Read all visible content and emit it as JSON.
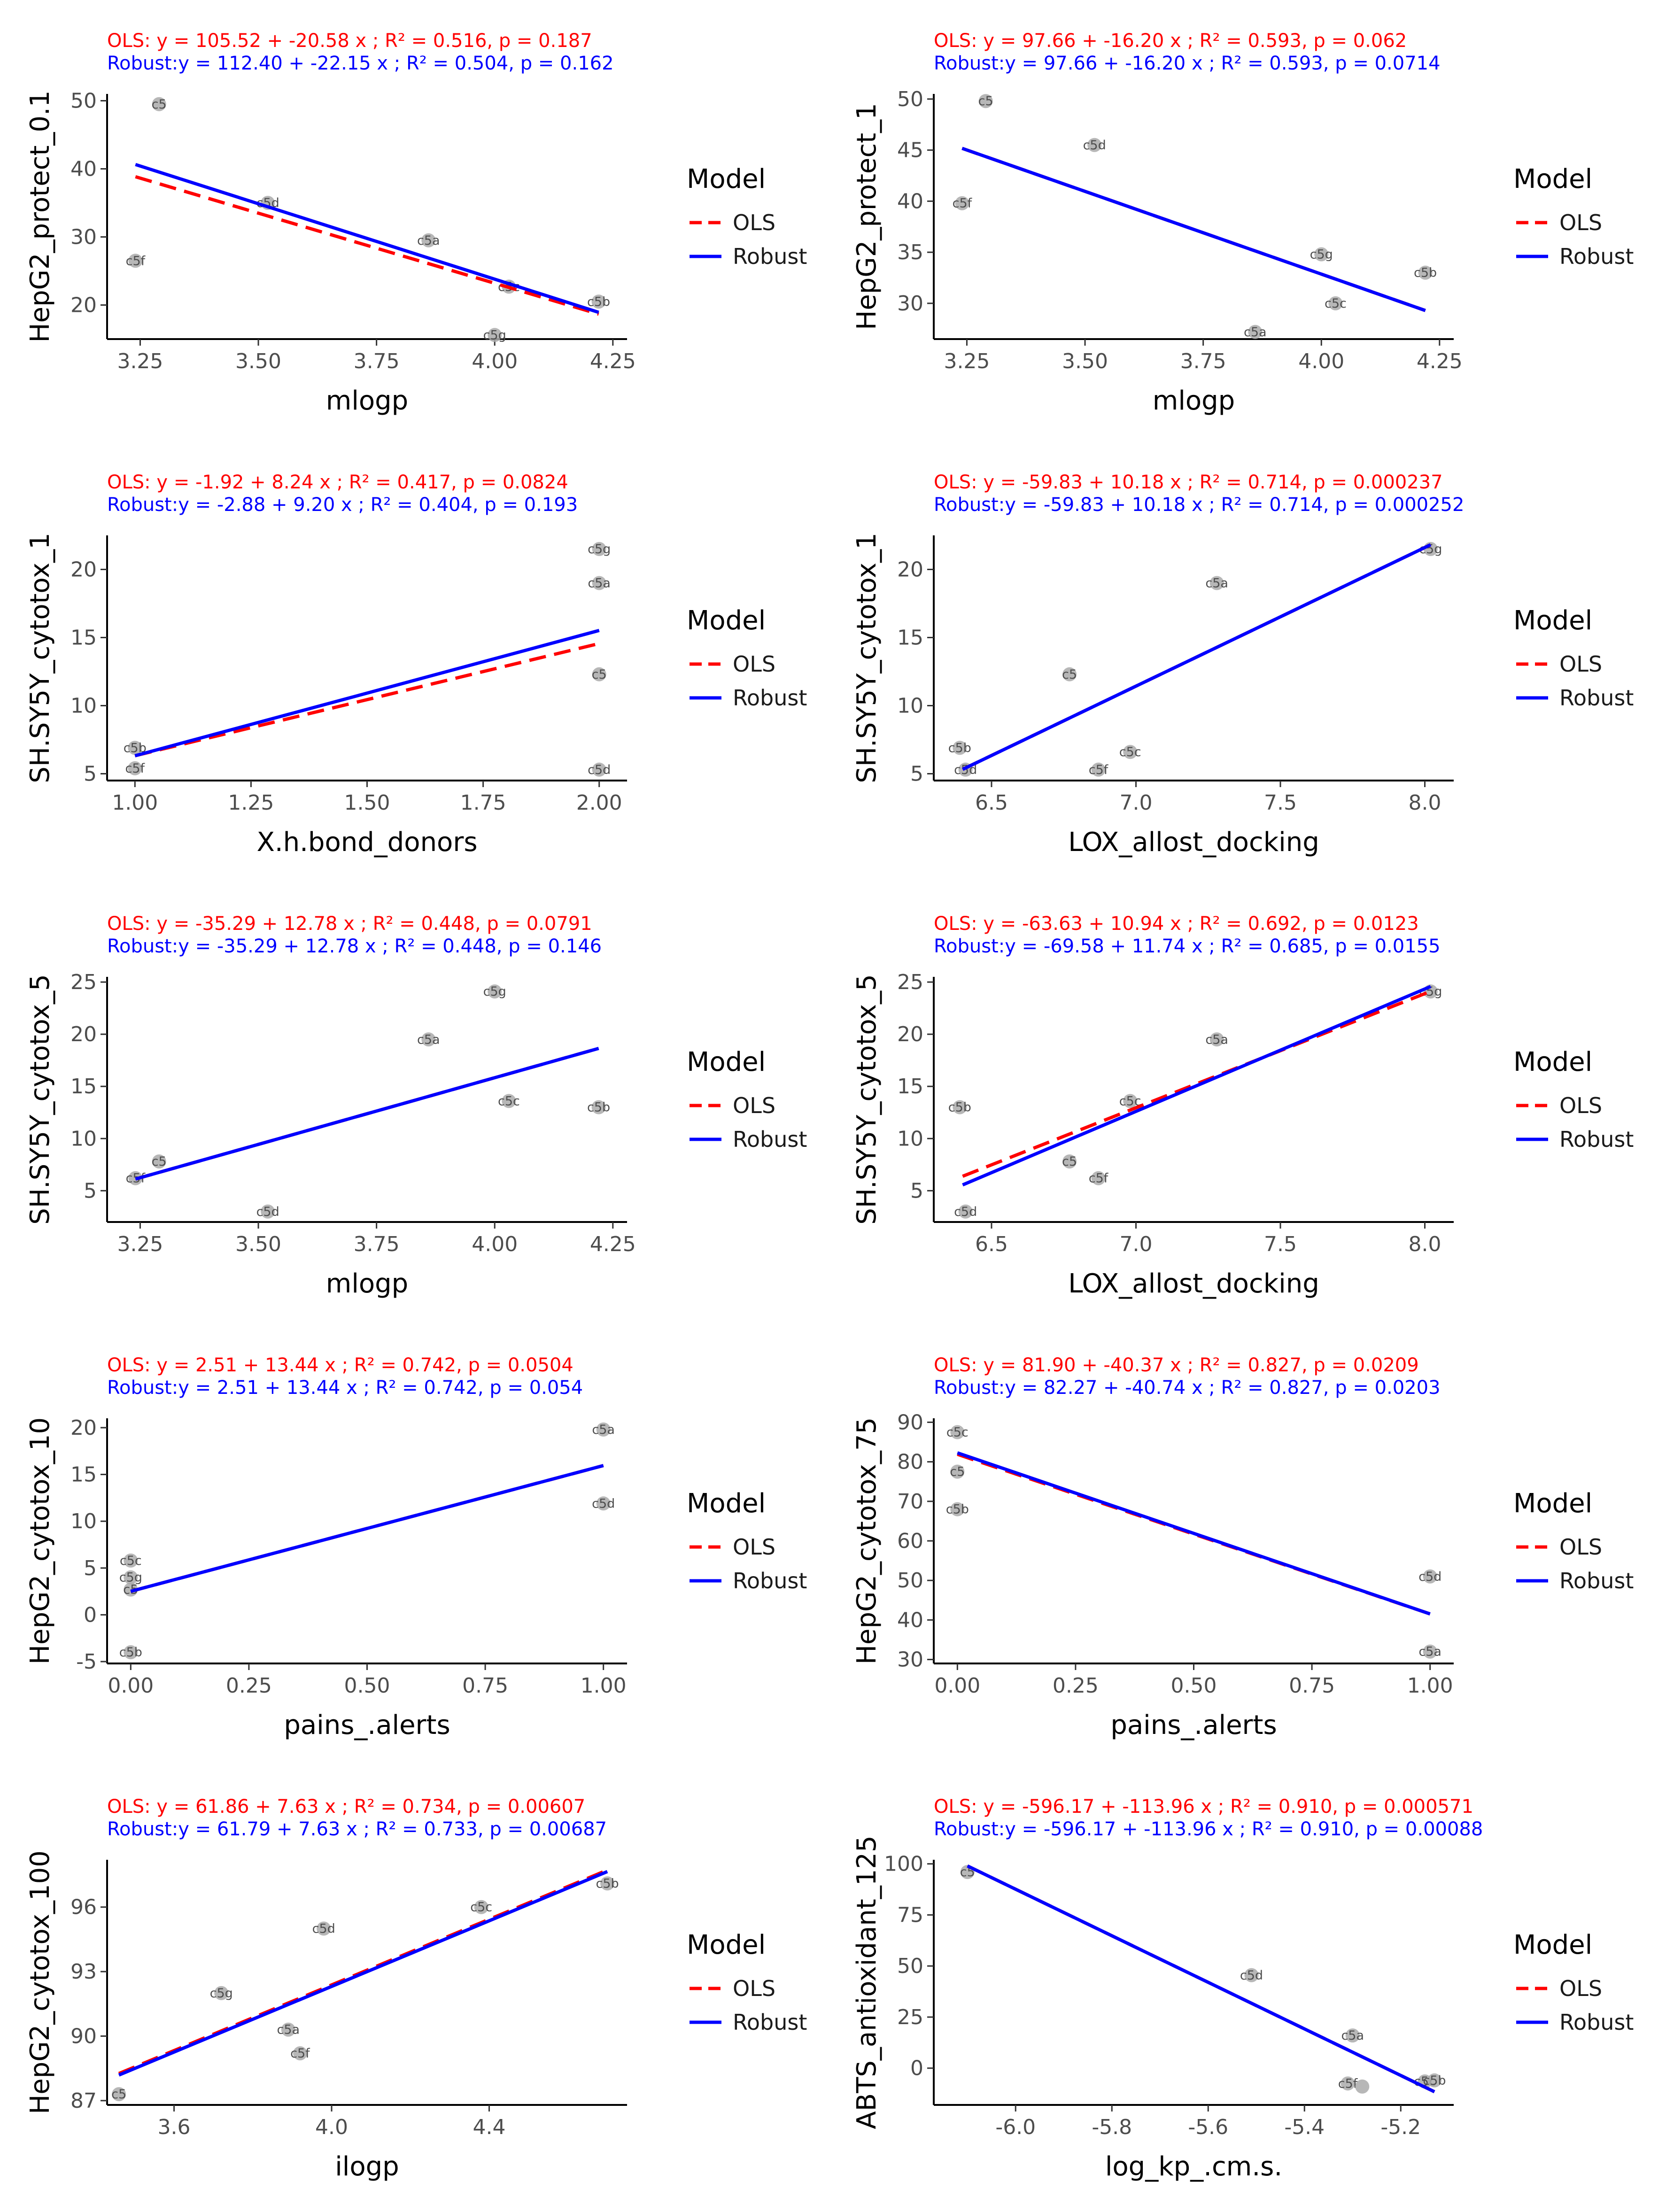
{
  "legend": {
    "title": "Model",
    "entries": [
      {
        "name": "OLS",
        "color": "#ff0000",
        "dash": true
      },
      {
        "name": "Robust",
        "color": "#0000ff",
        "dash": false
      }
    ]
  },
  "colors": {
    "ols": "#ff0000",
    "robust": "#0000ff",
    "point": "#aaaaaa",
    "axis": "#000000",
    "tick_text": "#4d4d4d"
  },
  "chart_data": [
    {
      "type": "scatter",
      "eq_ols": "OLS:  y = 105.52 + -20.58 x ; R² = 0.516, p = 0.187",
      "eq_robust": "Robust:y = 112.40 + -22.15 x ; R² = 0.504, p = 0.162",
      "xlabel": "mlogp",
      "ylabel": "HepG2_protect_0.1",
      "xlim": [
        3.18,
        4.28
      ],
      "ylim": [
        15,
        51
      ],
      "xticks": [
        "3.25",
        "3.50",
        "3.75",
        "4.00",
        "4.25"
      ],
      "xtick_values": [
        3.25,
        3.5,
        3.75,
        4.0,
        4.25
      ],
      "yticks": [
        "20",
        "30",
        "40",
        "50"
      ],
      "ytick_values": [
        20,
        30,
        40,
        50
      ],
      "points": [
        {
          "label": "c5",
          "x": 3.29,
          "y": 49.5
        },
        {
          "label": "c5d",
          "x": 3.52,
          "y": 35.0
        },
        {
          "label": "c5a",
          "x": 3.86,
          "y": 29.5
        },
        {
          "label": "c5f",
          "x": 3.24,
          "y": 26.5
        },
        {
          "label": "c5c",
          "x": 4.03,
          "y": 22.7
        },
        {
          "label": "c5b",
          "x": 4.22,
          "y": 20.5
        },
        {
          "label": "c5g",
          "x": 4.0,
          "y": 15.6
        }
      ],
      "ols": {
        "intercept": 105.52,
        "slope": -20.58
      },
      "robust": {
        "intercept": 112.4,
        "slope": -22.15
      },
      "x_range": [
        3.24,
        4.22
      ]
    },
    {
      "type": "scatter",
      "eq_ols": "OLS:  y = 97.66 + -16.20 x ; R² = 0.593, p = 0.062",
      "eq_robust": "Robust:y = 97.66 + -16.20 x ; R² = 0.593, p = 0.0714",
      "xlabel": "mlogp",
      "ylabel": "HepG2_protect_1",
      "xlim": [
        3.18,
        4.28
      ],
      "ylim": [
        26.5,
        50.5
      ],
      "xticks": [
        "3.25",
        "3.50",
        "3.75",
        "4.00",
        "4.25"
      ],
      "xtick_values": [
        3.25,
        3.5,
        3.75,
        4.0,
        4.25
      ],
      "yticks": [
        "30",
        "35",
        "40",
        "45",
        "50"
      ],
      "ytick_values": [
        30,
        35,
        40,
        45,
        50
      ],
      "points": [
        {
          "label": "c5",
          "x": 3.29,
          "y": 49.8
        },
        {
          "label": "c5d",
          "x": 3.52,
          "y": 45.5
        },
        {
          "label": "c5f",
          "x": 3.24,
          "y": 39.8
        },
        {
          "label": "c5g",
          "x": 4.0,
          "y": 34.8
        },
        {
          "label": "c5b",
          "x": 4.22,
          "y": 33.0
        },
        {
          "label": "c5c",
          "x": 4.03,
          "y": 30.0
        },
        {
          "label": "c5a",
          "x": 3.86,
          "y": 27.2
        }
      ],
      "ols": {
        "intercept": 97.66,
        "slope": -16.2
      },
      "robust": {
        "intercept": 97.66,
        "slope": -16.2
      },
      "x_range": [
        3.24,
        4.22
      ]
    },
    {
      "type": "scatter",
      "eq_ols": "OLS:  y = -1.92 + 8.24 x ; R² = 0.417, p = 0.0824",
      "eq_robust": "Robust:y = -2.88 + 9.20 x ; R² = 0.404, p = 0.193",
      "xlabel": "X.h.bond_donors",
      "ylabel": "SH.SY5Y_cytotox_1",
      "xlim": [
        0.94,
        2.06
      ],
      "ylim": [
        4.5,
        22.5
      ],
      "xticks": [
        "1.00",
        "1.25",
        "1.50",
        "1.75",
        "2.00"
      ],
      "xtick_values": [
        1.0,
        1.25,
        1.5,
        1.75,
        2.0
      ],
      "yticks": [
        "5",
        "10",
        "15",
        "20"
      ],
      "ytick_values": [
        5,
        10,
        15,
        20
      ],
      "points": [
        {
          "label": "c5g",
          "x": 2.0,
          "y": 21.5
        },
        {
          "label": "c5a",
          "x": 2.0,
          "y": 19.0
        },
        {
          "label": "c5",
          "x": 2.0,
          "y": 12.3
        },
        {
          "label": "c5d",
          "x": 2.0,
          "y": 5.3
        },
        {
          "label": "c5b",
          "x": 1.0,
          "y": 6.9
        },
        {
          "label": "c5f",
          "x": 1.0,
          "y": 5.4
        }
      ],
      "ols": {
        "intercept": -1.92,
        "slope": 8.24
      },
      "robust": {
        "intercept": -2.88,
        "slope": 9.2
      },
      "x_range": [
        1.0,
        2.0
      ]
    },
    {
      "type": "scatter",
      "eq_ols": "OLS:  y = -59.83 + 10.18 x ; R² = 0.714, p = 0.000237",
      "eq_robust": "Robust:y = -59.83 + 10.18 x ; R² = 0.714, p = 0.000252",
      "xlabel": "LOX_allost_docking",
      "ylabel": "SH.SY5Y_cytotox_1",
      "xlim": [
        6.3,
        8.1
      ],
      "ylim": [
        4.5,
        22.5
      ],
      "xticks": [
        "6.5",
        "7.0",
        "7.5",
        "8.0"
      ],
      "xtick_values": [
        6.5,
        7.0,
        7.5,
        8.0
      ],
      "yticks": [
        "5",
        "10",
        "15",
        "20"
      ],
      "ytick_values": [
        5,
        10,
        15,
        20
      ],
      "points": [
        {
          "label": "c5g",
          "x": 8.02,
          "y": 21.5
        },
        {
          "label": "c5a",
          "x": 7.28,
          "y": 19.0
        },
        {
          "label": "c5",
          "x": 6.77,
          "y": 12.3
        },
        {
          "label": "c5b",
          "x": 6.39,
          "y": 6.9
        },
        {
          "label": "c5c",
          "x": 6.98,
          "y": 6.6
        },
        {
          "label": "c5d",
          "x": 6.41,
          "y": 5.3
        },
        {
          "label": "c5f",
          "x": 6.87,
          "y": 5.3
        }
      ],
      "ols": {
        "intercept": -59.83,
        "slope": 10.18
      },
      "robust": {
        "intercept": -59.83,
        "slope": 10.18
      },
      "x_range": [
        6.4,
        8.02
      ]
    },
    {
      "type": "scatter",
      "eq_ols": "OLS:  y = -35.29 + 12.78 x ; R² = 0.448, p = 0.0791",
      "eq_robust": "Robust:y = -35.29 + 12.78 x ; R² = 0.448, p = 0.146",
      "xlabel": "mlogp",
      "ylabel": "SH.SY5Y_cytotox_5",
      "xlim": [
        3.18,
        4.28
      ],
      "ylim": [
        2,
        25.5
      ],
      "xticks": [
        "3.25",
        "3.50",
        "3.75",
        "4.00",
        "4.25"
      ],
      "xtick_values": [
        3.25,
        3.5,
        3.75,
        4.0,
        4.25
      ],
      "yticks": [
        "5",
        "10",
        "15",
        "20",
        "25"
      ],
      "ytick_values": [
        5,
        10,
        15,
        20,
        25
      ],
      "points": [
        {
          "label": "c5g",
          "x": 4.0,
          "y": 24.1
        },
        {
          "label": "c5a",
          "x": 3.86,
          "y": 19.5
        },
        {
          "label": "c5c",
          "x": 4.03,
          "y": 13.6
        },
        {
          "label": "c5b",
          "x": 4.22,
          "y": 13.0
        },
        {
          "label": "c5",
          "x": 3.29,
          "y": 7.8
        },
        {
          "label": "c5f",
          "x": 3.24,
          "y": 6.2
        },
        {
          "label": "c5d",
          "x": 3.52,
          "y": 3.0
        }
      ],
      "ols": {
        "intercept": -35.29,
        "slope": 12.78
      },
      "robust": {
        "intercept": -35.29,
        "slope": 12.78
      },
      "x_range": [
        3.24,
        4.22
      ]
    },
    {
      "type": "scatter",
      "eq_ols": "OLS:  y = -63.63 + 10.94 x ; R² = 0.692, p = 0.0123",
      "eq_robust": "Robust:y = -69.58 + 11.74 x ; R² = 0.685, p = 0.0155",
      "xlabel": "LOX_allost_docking",
      "ylabel": "SH.SY5Y_cytotox_5",
      "xlim": [
        6.3,
        8.1
      ],
      "ylim": [
        2,
        25.5
      ],
      "xticks": [
        "6.5",
        "7.0",
        "7.5",
        "8.0"
      ],
      "xtick_values": [
        6.5,
        7.0,
        7.5,
        8.0
      ],
      "yticks": [
        "5",
        "10",
        "15",
        "20",
        "25"
      ],
      "ytick_values": [
        5,
        10,
        15,
        20,
        25
      ],
      "points": [
        {
          "label": "c5g",
          "x": 8.02,
          "y": 24.1
        },
        {
          "label": "c5a",
          "x": 7.28,
          "y": 19.5
        },
        {
          "label": "c5c",
          "x": 6.98,
          "y": 13.6
        },
        {
          "label": "c5b",
          "x": 6.39,
          "y": 13.0
        },
        {
          "label": "c5",
          "x": 6.77,
          "y": 7.8
        },
        {
          "label": "c5f",
          "x": 6.87,
          "y": 6.2
        },
        {
          "label": "c5d",
          "x": 6.41,
          "y": 3.0
        }
      ],
      "ols": {
        "intercept": -63.63,
        "slope": 10.94
      },
      "robust": {
        "intercept": -69.58,
        "slope": 11.74
      },
      "x_range": [
        6.4,
        8.02
      ]
    },
    {
      "type": "scatter",
      "eq_ols": "OLS:  y = 2.51 + 13.44 x ; R² = 0.742, p = 0.0504",
      "eq_robust": "Robust:y = 2.51 + 13.44 x ; R² = 0.742, p = 0.054",
      "xlabel": "pains_.alerts",
      "ylabel": "HepG2_cytotox_10",
      "xlim": [
        -0.05,
        1.05
      ],
      "ylim": [
        -5.2,
        21
      ],
      "xticks": [
        "0.00",
        "0.25",
        "0.50",
        "0.75",
        "1.00"
      ],
      "xtick_values": [
        0,
        0.25,
        0.5,
        0.75,
        1.0
      ],
      "yticks": [
        "-5",
        "0",
        "5",
        "10",
        "15",
        "20"
      ],
      "ytick_values": [
        -5,
        0,
        5,
        10,
        15,
        20
      ],
      "points": [
        {
          "label": "c5a",
          "x": 1.0,
          "y": 19.8
        },
        {
          "label": "c5d",
          "x": 1.0,
          "y": 11.9
        },
        {
          "label": "c5c",
          "x": 0.0,
          "y": 5.8
        },
        {
          "label": "c5g",
          "x": 0.0,
          "y": 4.0
        },
        {
          "label": "c5",
          "x": 0.0,
          "y": 2.7
        },
        {
          "label": "c5b",
          "x": 0.0,
          "y": -4.0
        }
      ],
      "ols": {
        "intercept": 2.51,
        "slope": 13.44
      },
      "robust": {
        "intercept": 2.51,
        "slope": 13.44
      },
      "x_range": [
        0.0,
        1.0
      ]
    },
    {
      "type": "scatter",
      "eq_ols": "OLS:  y = 81.90 + -40.37 x ; R² = 0.827, p = 0.0209",
      "eq_robust": "Robust:y = 82.27 + -40.74 x ; R² = 0.827, p = 0.0203",
      "xlabel": "pains_.alerts",
      "ylabel": "HepG2_cytotox_75",
      "xlim": [
        -0.05,
        1.05
      ],
      "ylim": [
        29,
        91
      ],
      "xticks": [
        "0.00",
        "0.25",
        "0.50",
        "0.75",
        "1.00"
      ],
      "xtick_values": [
        0,
        0.25,
        0.5,
        0.75,
        1.0
      ],
      "yticks": [
        "30",
        "40",
        "50",
        "60",
        "70",
        "80",
        "90"
      ],
      "ytick_values": [
        30,
        40,
        50,
        60,
        70,
        80,
        90
      ],
      "points": [
        {
          "label": "c5c",
          "x": 0.0,
          "y": 87.5
        },
        {
          "label": "c5",
          "x": 0.0,
          "y": 77.5
        },
        {
          "label": "c5b",
          "x": 0.0,
          "y": 68.0
        },
        {
          "label": "c5d",
          "x": 1.0,
          "y": 51.0
        },
        {
          "label": "c5a",
          "x": 1.0,
          "y": 32.0
        }
      ],
      "ols": {
        "intercept": 81.9,
        "slope": -40.37
      },
      "robust": {
        "intercept": 82.27,
        "slope": -40.74
      },
      "x_range": [
        0.0,
        1.0
      ]
    },
    {
      "type": "scatter",
      "eq_ols": "OLS:  y = 61.86 + 7.63 x ; R² = 0.734, p = 0.00607",
      "eq_robust": "Robust:y = 61.79 + 7.63 x ; R² = 0.733, p = 0.00687",
      "xlabel": "ilogp",
      "ylabel": "HepG2_cytotox_100",
      "xlim": [
        3.43,
        4.75
      ],
      "ylim": [
        86.8,
        98.2
      ],
      "xticks": [
        "3.6",
        "4.0",
        "4.4"
      ],
      "xtick_values": [
        3.6,
        4.0,
        4.4
      ],
      "yticks": [
        "87",
        "90",
        "93",
        "96"
      ],
      "ytick_values": [
        87,
        90,
        93,
        96
      ],
      "points": [
        {
          "label": "c5b",
          "x": 4.7,
          "y": 97.1
        },
        {
          "label": "c5c",
          "x": 4.38,
          "y": 96.0
        },
        {
          "label": "c5d",
          "x": 3.98,
          "y": 95.0
        },
        {
          "label": "c5g",
          "x": 3.72,
          "y": 92.0
        },
        {
          "label": "c5a",
          "x": 3.89,
          "y": 90.3
        },
        {
          "label": "c5f",
          "x": 3.92,
          "y": 89.2
        },
        {
          "label": "c5",
          "x": 3.46,
          "y": 87.3
        }
      ],
      "ols": {
        "intercept": 61.86,
        "slope": 7.63
      },
      "robust": {
        "intercept": 61.79,
        "slope": 7.63
      },
      "x_range": [
        3.46,
        4.7
      ]
    },
    {
      "type": "scatter",
      "eq_ols": "OLS:  y = -596.17 + -113.96 x ; R² = 0.910, p = 0.000571",
      "eq_robust": "Robust:y = -596.17 + -113.96 x ; R² = 0.910, p = 0.00088",
      "xlabel": "log_kp_.cm.s.",
      "ylabel": "ABTS_antioxidant_125",
      "xlim": [
        -6.17,
        -5.09
      ],
      "ylim": [
        -18,
        102
      ],
      "xticks": [
        "-6.0",
        "-5.8",
        "-5.6",
        "-5.4",
        "-5.2"
      ],
      "xtick_values": [
        -6.0,
        -5.8,
        -5.6,
        -5.4,
        -5.2
      ],
      "yticks": [
        "0",
        "25",
        "50",
        "75",
        "100"
      ],
      "ytick_values": [
        0,
        25,
        50,
        75,
        100
      ],
      "points": [
        {
          "label": "c5",
          "x": -6.1,
          "y": 96.0
        },
        {
          "label": "c5d",
          "x": -5.51,
          "y": 45.5
        },
        {
          "label": "c5a",
          "x": -5.3,
          "y": 16.0
        },
        {
          "label": "c5f",
          "x": -5.31,
          "y": -7.5
        },
        {
          "label": "",
          "x": -5.28,
          "y": -9.0
        },
        {
          "label": "c5c",
          "x": -5.15,
          "y": -6.5
        },
        {
          "label": "c5b",
          "x": -5.13,
          "y": -6.0
        }
      ],
      "ols": {
        "intercept": -596.17,
        "slope": -113.96
      },
      "robust": {
        "intercept": -596.17,
        "slope": -113.96
      },
      "x_range": [
        -6.1,
        -5.13
      ]
    }
  ]
}
